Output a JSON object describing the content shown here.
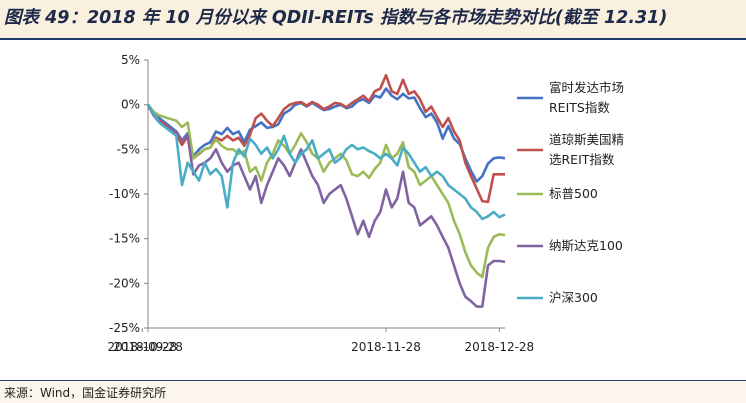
{
  "title": "图表 49：2018 年 10 月份以来 QDII-REITs 指数与各市场走势对比(截至 12.31)",
  "source": "来源：Wind，国金证券研究所",
  "chart_data": {
    "type": "line",
    "title": "图表 49：2018 年 10 月份以来 QDII-REITs 指数与各市场走势对比(截至 12.31)",
    "x": [
      "2018-09-28",
      "2018-10-01",
      "2018-10-02",
      "2018-10-03",
      "2018-10-04",
      "2018-10-05",
      "2018-10-08",
      "2018-10-09",
      "2018-10-10",
      "2018-10-11",
      "2018-10-12",
      "2018-10-15",
      "2018-10-16",
      "2018-10-17",
      "2018-10-18",
      "2018-10-19",
      "2018-10-22",
      "2018-10-23",
      "2018-10-24",
      "2018-10-25",
      "2018-10-26",
      "2018-10-29",
      "2018-10-30",
      "2018-10-31",
      "2018-11-01",
      "2018-11-02",
      "2018-11-05",
      "2018-11-06",
      "2018-11-07",
      "2018-11-08",
      "2018-11-09",
      "2018-11-12",
      "2018-11-13",
      "2018-11-14",
      "2018-11-15",
      "2018-11-16",
      "2018-11-19",
      "2018-11-20",
      "2018-11-21",
      "2018-11-23",
      "2018-11-26",
      "2018-11-27",
      "2018-11-28",
      "2018-11-29",
      "2018-11-30",
      "2018-12-03",
      "2018-12-04",
      "2018-12-06",
      "2018-12-07",
      "2018-12-10",
      "2018-12-11",
      "2018-12-12",
      "2018-12-13",
      "2018-12-14",
      "2018-12-17",
      "2018-12-18",
      "2018-12-19",
      "2018-12-20",
      "2018-12-21",
      "2018-12-24",
      "2018-12-26",
      "2018-12-27",
      "2018-12-28",
      "2018-12-31"
    ],
    "xticks": [
      "2018-09-28",
      "2018-10-28",
      "2018-11-28",
      "2018-12-28"
    ],
    "ylim": [
      -25,
      5
    ],
    "yticks": [
      5,
      0,
      -5,
      -10,
      -15,
      -20,
      -25
    ],
    "ytick_format": "percent",
    "grid": false,
    "legend_position": "right",
    "series": [
      {
        "name": "富时发达市场REITS指数",
        "legend_lines": [
          "富时发达市场",
          "REITS指数"
        ],
        "color": "#4472c4",
        "values": [
          0,
          -1.0,
          -1.5,
          -2.0,
          -2.5,
          -3.0,
          -4.0,
          -3.2,
          -5.8,
          -5.0,
          -4.5,
          -4.2,
          -3.0,
          -3.3,
          -2.6,
          -3.3,
          -3.0,
          -4.2,
          -2.8,
          -2.4,
          -2.0,
          -2.6,
          -2.5,
          -2.2,
          -1.0,
          -0.6,
          0.0,
          0.2,
          -0.2,
          0.2,
          -0.2,
          -0.6,
          -0.5,
          -0.2,
          0.0,
          -0.4,
          -0.2,
          0.4,
          0.6,
          0.2,
          1.0,
          0.8,
          1.8,
          1.0,
          0.6,
          1.2,
          0.7,
          0.8,
          -0.4,
          -1.4,
          -1.0,
          -2.0,
          -3.8,
          -2.4,
          -3.8,
          -4.4,
          -6.0,
          -7.4,
          -8.6,
          -8.0,
          -6.6,
          -6.0,
          -5.9,
          -6.0
        ]
      },
      {
        "name": "道琼斯美国精选REIT指数",
        "legend_lines": [
          "道琼斯美国精",
          "选REIT指数"
        ],
        "color": "#c0504d",
        "values": [
          0,
          -1.2,
          -1.8,
          -2.2,
          -2.8,
          -3.3,
          -4.5,
          -3.5,
          -6.0,
          -5.5,
          -5.0,
          -4.8,
          -3.7,
          -4.0,
          -3.5,
          -4.0,
          -3.7,
          -4.6,
          -3.4,
          -1.5,
          -1.0,
          -1.8,
          -2.4,
          -1.5,
          -0.5,
          0.0,
          0.2,
          0.3,
          -0.1,
          0.3,
          0.0,
          -0.5,
          -0.2,
          0.2,
          0.1,
          -0.3,
          0.2,
          0.6,
          1.0,
          0.4,
          1.5,
          1.8,
          3.3,
          1.5,
          1.2,
          2.8,
          1.2,
          1.5,
          0.6,
          -0.8,
          -0.2,
          -1.4,
          -2.5,
          -1.5,
          -3.0,
          -4.0,
          -6.5,
          -8.0,
          -9.4,
          -10.8,
          -10.9,
          -7.8,
          -7.8,
          -7.8
        ]
      },
      {
        "name": "标普500",
        "legend_lines": [
          "标普500"
        ],
        "color": "#9bbb59",
        "values": [
          0,
          -0.8,
          -1.2,
          -1.4,
          -1.6,
          -1.8,
          -2.5,
          -2.0,
          -6.0,
          -5.4,
          -5.0,
          -4.8,
          -3.9,
          -4.6,
          -5.0,
          -5.0,
          -5.5,
          -5.2,
          -7.5,
          -7.0,
          -8.5,
          -6.5,
          -5.5,
          -4.0,
          -4.6,
          -5.5,
          -4.5,
          -3.2,
          -4.2,
          -5.5,
          -6.0,
          -7.5,
          -6.5,
          -6.0,
          -5.5,
          -6.2,
          -7.8,
          -8.0,
          -7.5,
          -8.2,
          -7.2,
          -6.5,
          -4.5,
          -6.0,
          -5.5,
          -4.2,
          -7.0,
          -7.5,
          -9.0,
          -8.5,
          -8.0,
          -9.0,
          -10.0,
          -11.0,
          -13.0,
          -14.5,
          -16.5,
          -18.0,
          -18.8,
          -19.3,
          -16.0,
          -14.8,
          -14.5,
          -14.6
        ]
      },
      {
        "name": "纳斯达克100",
        "legend_lines": [
          "纳斯达克100"
        ],
        "color": "#8064a2",
        "values": [
          0,
          -1.2,
          -2.0,
          -2.5,
          -2.8,
          -3.0,
          -4.0,
          -3.5,
          -7.8,
          -6.8,
          -6.5,
          -6.0,
          -5.0,
          -6.5,
          -7.5,
          -6.8,
          -6.5,
          -8.0,
          -9.5,
          -8.0,
          -11.0,
          -9.0,
          -7.5,
          -6.0,
          -6.8,
          -8.0,
          -6.5,
          -5.0,
          -6.5,
          -8.0,
          -9.0,
          -11.0,
          -10.0,
          -9.5,
          -9.0,
          -10.5,
          -12.5,
          -14.5,
          -13.0,
          -14.8,
          -13.0,
          -12.0,
          -9.5,
          -11.5,
          -10.5,
          -7.5,
          -11.0,
          -11.5,
          -13.5,
          -13.0,
          -12.5,
          -13.5,
          -14.8,
          -16.0,
          -18.0,
          -20.0,
          -21.5,
          -22.0,
          -22.6,
          -22.6,
          -18.0,
          -17.5,
          -17.5,
          -17.6
        ]
      },
      {
        "name": "沪深300",
        "legend_lines": [
          "沪深300"
        ],
        "color": "#4bacc6",
        "values": [
          0,
          -1.0,
          -2.0,
          -2.5,
          -3.0,
          -3.5,
          -9.0,
          -6.5,
          -7.5,
          -8.5,
          -6.5,
          -7.8,
          -7.2,
          -8.0,
          -11.5,
          -6.5,
          -5.0,
          -5.8,
          -3.8,
          -4.5,
          -5.5,
          -4.8,
          -6.0,
          -5.0,
          -3.5,
          -5.5,
          -6.5,
          -5.5,
          -5.0,
          -4.0,
          -6.0,
          -5.5,
          -5.0,
          -6.5,
          -6.0,
          -5.0,
          -4.5,
          -5.0,
          -4.8,
          -5.2,
          -5.5,
          -6.0,
          -5.5,
          -6.0,
          -6.8,
          -4.8,
          -5.5,
          -6.5,
          -7.5,
          -7.0,
          -8.0,
          -7.5,
          -8.0,
          -9.0,
          -9.5,
          -10.0,
          -10.5,
          -11.5,
          -12.0,
          -12.8,
          -12.5,
          -12.0,
          -12.6,
          -12.3
        ]
      }
    ]
  }
}
